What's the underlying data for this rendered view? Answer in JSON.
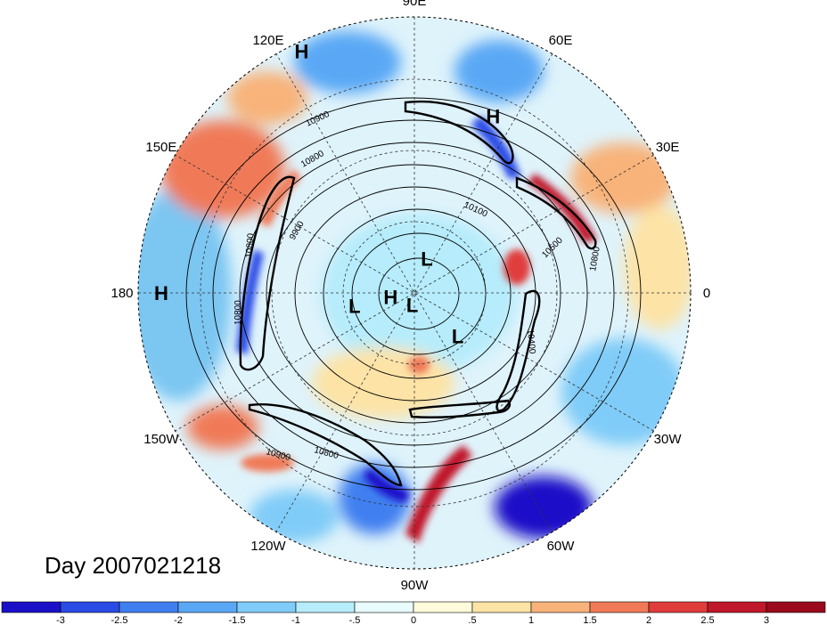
{
  "map": {
    "projection": "north-polar-stereographic",
    "lon_labels": [
      {
        "text": "90E",
        "lon": 90
      },
      {
        "text": "60E",
        "lon": 60
      },
      {
        "text": "30E",
        "lon": 30
      },
      {
        "text": "0",
        "lon": 0
      },
      {
        "text": "30W",
        "lon": -30
      },
      {
        "text": "60W",
        "lon": -60
      },
      {
        "text": "90W",
        "lon": -90
      },
      {
        "text": "120W",
        "lon": -120
      },
      {
        "text": "150W",
        "lon": -150
      },
      {
        "text": "180",
        "lon": 180
      },
      {
        "text": "150E",
        "lon": 150
      },
      {
        "text": "120E",
        "lon": 120
      }
    ],
    "pressure_centers": [
      {
        "text": "H",
        "lon": 115,
        "lat": 2
      },
      {
        "text": "H",
        "lon": 66,
        "lat": 20
      },
      {
        "text": "H",
        "lon": 180,
        "lat": 5
      },
      {
        "text": "H",
        "lon": -170,
        "lat": 80
      },
      {
        "text": "L",
        "lon": 70,
        "lat": 75
      },
      {
        "text": "L",
        "lon": -168,
        "lat": 65
      },
      {
        "text": "L",
        "lon": -100,
        "lat": 85
      },
      {
        "text": "L",
        "lon": -45,
        "lat": 65
      }
    ],
    "contour_labels": [
      "10900",
      "10800",
      "10100",
      "10500",
      "10800",
      "9900",
      "10800",
      "10400",
      "10800",
      "10900",
      "10800"
    ],
    "day_label": "Day 2007021218",
    "colors": {
      "negative_strong": "#1a10c8",
      "positive_strong": "#a50f15",
      "neutral": "#ffffff",
      "contour": "#000000",
      "grid": "#333333"
    }
  },
  "colorbar": {
    "ticks": [
      "-3",
      "-2.5",
      "-2",
      "-1.5",
      "-1",
      "-.5",
      "0",
      ".5",
      "1",
      "1.5",
      "2",
      "2.5",
      "3"
    ],
    "colors": [
      "#1a10c8",
      "#2a4be6",
      "#3f7ff0",
      "#5aa8f5",
      "#80ccf8",
      "#b6ecfb",
      "#e8fbfd",
      "#fefbdc",
      "#fde3a6",
      "#f8b37a",
      "#f07a58",
      "#e03c3c",
      "#c0182a",
      "#9b0a1c"
    ]
  }
}
